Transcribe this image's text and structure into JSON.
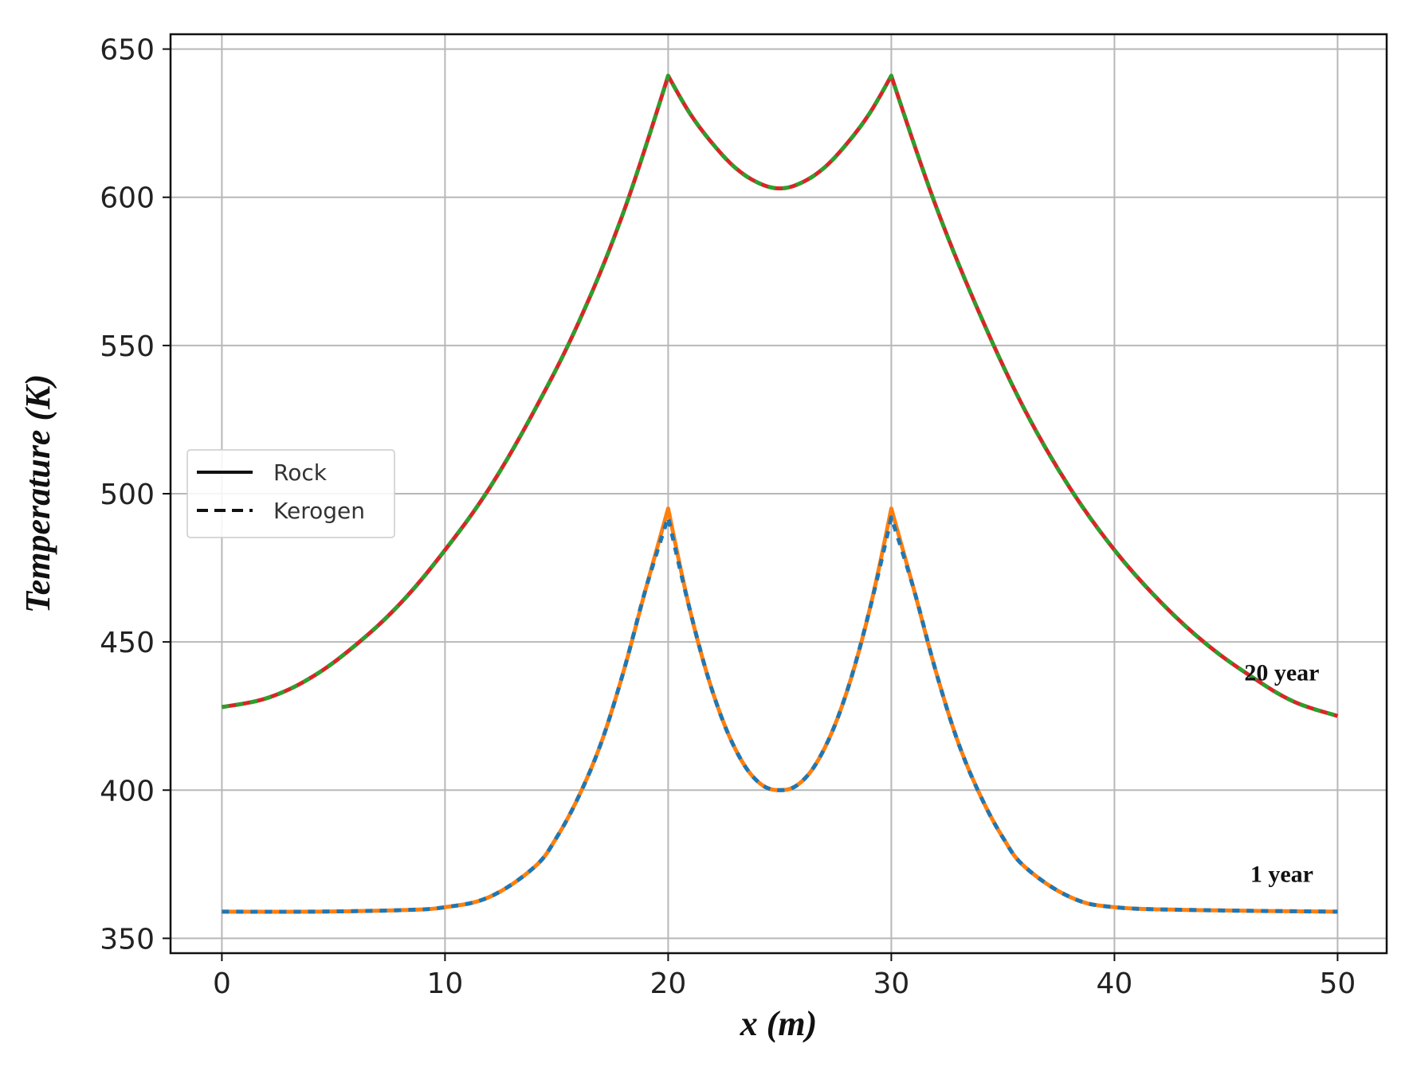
{
  "chart_data": {
    "type": "line",
    "xlabel": "x (m)",
    "ylabel": "Temperature (K)",
    "xlim": [
      -2.3,
      52.2
    ],
    "ylim": [
      345,
      655
    ],
    "xticks": [
      0,
      10,
      20,
      30,
      40,
      50
    ],
    "yticks": [
      350,
      400,
      450,
      500,
      550,
      600,
      650
    ],
    "grid": true,
    "legend": {
      "placement": "center-left",
      "entries": [
        {
          "label": "Rock",
          "style": "solid"
        },
        {
          "label": "Kerogen",
          "style": "dashed"
        }
      ]
    },
    "annotations": [
      {
        "text": "20 year",
        "x": 47.5,
        "y": 437
      },
      {
        "text": "1 year",
        "x": 47.5,
        "y": 369
      }
    ],
    "series": [
      {
        "curve": "20 year",
        "kind": "Rock",
        "color": "#d62728",
        "style": "solid",
        "x": [
          0,
          2,
          4,
          6,
          8,
          10,
          12,
          14,
          16,
          18,
          20,
          21,
          22,
          23,
          24,
          25,
          26,
          27,
          28,
          29,
          30,
          32,
          34,
          36,
          38,
          40,
          42,
          44,
          46,
          48,
          50
        ],
        "y": [
          428,
          431,
          438,
          449,
          463,
          481,
          502,
          528,
          558,
          595,
          641,
          628,
          618,
          610,
          605,
          603,
          605,
          610,
          618,
          628,
          641,
          597,
          560,
          528,
          502,
          481,
          464,
          450,
          439,
          430,
          425
        ]
      },
      {
        "curve": "20 year",
        "kind": "Kerogen",
        "color": "#2ca02c",
        "style": "dashed",
        "x": [
          0,
          2,
          4,
          6,
          8,
          10,
          12,
          14,
          16,
          18,
          20,
          21,
          22,
          23,
          24,
          25,
          26,
          27,
          28,
          29,
          30,
          32,
          34,
          36,
          38,
          40,
          42,
          44,
          46,
          48,
          50
        ],
        "y": [
          428,
          431,
          438,
          449,
          463,
          481,
          502,
          528,
          558,
          595,
          641,
          628,
          618,
          610,
          605,
          603,
          605,
          610,
          618,
          628,
          641,
          597,
          560,
          528,
          502,
          481,
          464,
          450,
          439,
          430,
          425
        ]
      },
      {
        "curve": "1 year",
        "kind": "Rock",
        "color": "#ff7f0e",
        "style": "solid",
        "x": [
          0,
          4,
          8,
          10,
          12,
          14,
          15,
          16,
          17,
          18,
          19,
          20,
          21,
          22,
          23,
          24,
          25,
          26,
          27,
          28,
          29,
          30,
          31,
          32,
          33,
          34,
          35,
          36,
          38,
          40,
          44,
          50
        ],
        "y": [
          359,
          359,
          359.5,
          360.5,
          364,
          374,
          384,
          398,
          416,
          440,
          468,
          495,
          460,
          433,
          414,
          403,
          400,
          403,
          414,
          433,
          460,
          495,
          468,
          440,
          416,
          398,
          384,
          374,
          364,
          360.5,
          359.5,
          359
        ]
      },
      {
        "curve": "1 year",
        "kind": "Kerogen",
        "color": "#1f77b4",
        "style": "dashed",
        "x": [
          0,
          4,
          8,
          10,
          12,
          14,
          15,
          16,
          17,
          18,
          19,
          20,
          21,
          22,
          23,
          24,
          25,
          26,
          27,
          28,
          29,
          30,
          31,
          32,
          33,
          34,
          35,
          36,
          38,
          40,
          44,
          50
        ],
        "y": [
          359,
          359,
          359.5,
          360.5,
          364,
          374,
          384,
          398,
          416,
          440,
          468,
          492,
          460,
          433,
          414,
          403,
          400,
          403,
          414,
          433,
          460,
          492,
          468,
          440,
          416,
          398,
          384,
          374,
          364,
          360.5,
          359.5,
          359
        ]
      }
    ]
  }
}
